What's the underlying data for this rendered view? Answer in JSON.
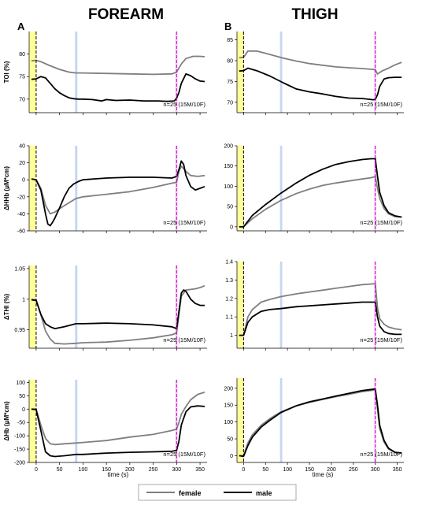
{
  "figure": {
    "col_titles": [
      "FOREARM",
      "THIGH"
    ],
    "panel_letters": [
      "A",
      "B"
    ],
    "xlabel": "time (s)",
    "annotation": "n=25 (15M/10F)",
    "legend": {
      "female": "female",
      "male": "male"
    },
    "colors": {
      "female": "#7f7f7f",
      "male": "#000000",
      "yellow_band": "#ffff99",
      "blue_band": "#c5d7f0",
      "pink_band": "#f4d2f4",
      "dash_black": "#000000",
      "dash_magenta": "#cc00cc"
    }
  },
  "chart_data": [
    {
      "type": "line",
      "id": "forearm-toi",
      "ylabel": "TOI (%)",
      "xlim": [
        -15,
        365
      ],
      "ylim": [
        67,
        85
      ],
      "yticks": [
        70,
        75,
        80
      ],
      "xticks": [
        0,
        50,
        100,
        150,
        200,
        250,
        300,
        350
      ],
      "show_xticklabels": false,
      "series": [
        {
          "name": "female",
          "x": [
            -10,
            0,
            10,
            30,
            50,
            70,
            85,
            100,
            150,
            200,
            250,
            290,
            300,
            310,
            320,
            335,
            350,
            360
          ],
          "y": [
            78.5,
            78.6,
            78.3,
            77.4,
            76.6,
            76.0,
            75.8,
            75.8,
            75.7,
            75.6,
            75.5,
            75.6,
            76.0,
            77.8,
            79.0,
            79.5,
            79.5,
            79.4
          ]
        },
        {
          "name": "male",
          "x": [
            -10,
            0,
            10,
            20,
            30,
            40,
            50,
            60,
            70,
            80,
            90,
            100,
            120,
            140,
            150,
            170,
            200,
            230,
            260,
            280,
            295,
            300,
            305,
            310,
            320,
            330,
            340,
            350,
            360
          ],
          "y": [
            74.4,
            74.5,
            75.0,
            74.7,
            73.5,
            72.3,
            71.4,
            70.8,
            70.3,
            70.1,
            70.0,
            70.0,
            69.9,
            69.6,
            69.9,
            69.7,
            69.8,
            69.6,
            69.6,
            69.5,
            69.6,
            70.2,
            71.5,
            73.5,
            75.6,
            75.2,
            74.5,
            74.0,
            73.9
          ]
        }
      ]
    },
    {
      "type": "line",
      "id": "thigh-toi",
      "ylabel": "",
      "xlim": [
        -15,
        365
      ],
      "ylim": [
        67.5,
        87
      ],
      "yticks": [
        70,
        75,
        80,
        85
      ],
      "xticks": [
        0,
        50,
        100,
        150,
        200,
        250,
        300,
        350
      ],
      "show_xticklabels": false,
      "series": [
        {
          "name": "female",
          "x": [
            -10,
            0,
            10,
            30,
            60,
            90,
            120,
            150,
            180,
            210,
            240,
            270,
            295,
            300,
            305,
            315,
            330,
            345,
            360
          ],
          "y": [
            80.7,
            80.8,
            82.3,
            82.3,
            81.5,
            80.6,
            79.9,
            79.3,
            78.9,
            78.5,
            78.3,
            78.1,
            77.9,
            77.8,
            76.8,
            77.5,
            78.2,
            79.0,
            79.6
          ]
        },
        {
          "name": "male",
          "x": [
            -10,
            0,
            10,
            30,
            60,
            90,
            120,
            150,
            180,
            210,
            240,
            270,
            295,
            300,
            305,
            310,
            320,
            330,
            345,
            360
          ],
          "y": [
            77.5,
            77.6,
            78.2,
            77.6,
            76.3,
            74.7,
            73.2,
            72.5,
            72.0,
            71.4,
            71.0,
            70.9,
            70.6,
            70.7,
            71.8,
            73.8,
            75.6,
            75.9,
            76.0,
            76.0
          ]
        }
      ]
    },
    {
      "type": "line",
      "id": "forearm-hhb",
      "ylabel": "ΔHHb (μM*cm)",
      "xlim": [
        -15,
        365
      ],
      "ylim": [
        -60,
        40
      ],
      "yticks": [
        -60,
        -40,
        -20,
        0,
        20,
        40
      ],
      "xticks": [
        0,
        50,
        100,
        150,
        200,
        250,
        300,
        350
      ],
      "show_xticklabels": false,
      "series": [
        {
          "name": "female",
          "x": [
            -10,
            0,
            10,
            20,
            30,
            40,
            50,
            70,
            85,
            100,
            150,
            200,
            250,
            290,
            300,
            305,
            310,
            320,
            330,
            345,
            360
          ],
          "y": [
            1,
            0,
            -10,
            -30,
            -40,
            -38,
            -34,
            -27,
            -22,
            -20,
            -17,
            -14,
            -9,
            -4,
            -3,
            10,
            16,
            10,
            5,
            4,
            5
          ]
        },
        {
          "name": "male",
          "x": [
            -10,
            0,
            10,
            20,
            25,
            30,
            35,
            40,
            50,
            60,
            70,
            80,
            90,
            100,
            150,
            200,
            250,
            290,
            300,
            305,
            310,
            315,
            320,
            330,
            340,
            350,
            360
          ],
          "y": [
            1,
            0,
            -12,
            -40,
            -52,
            -54,
            -50,
            -45,
            -33,
            -20,
            -10,
            -5,
            -2,
            0,
            2,
            3,
            3,
            2,
            4,
            12,
            22,
            18,
            5,
            -8,
            -12,
            -10,
            -8
          ]
        }
      ]
    },
    {
      "type": "line",
      "id": "thigh-hhb",
      "ylabel": "",
      "xlim": [
        -15,
        365
      ],
      "ylim": [
        -10,
        200
      ],
      "yticks": [
        0,
        50,
        100,
        150,
        200
      ],
      "xticks": [
        0,
        50,
        100,
        150,
        200,
        250,
        300,
        350
      ],
      "show_xticklabels": false,
      "series": [
        {
          "name": "female",
          "x": [
            -10,
            0,
            20,
            50,
            85,
            120,
            150,
            180,
            210,
            240,
            270,
            290,
            300,
            305,
            310,
            320,
            330,
            345,
            360
          ],
          "y": [
            0,
            0,
            20,
            43,
            65,
            82,
            93,
            102,
            108,
            113,
            118,
            121,
            124,
            95,
            70,
            45,
            32,
            25,
            24
          ]
        },
        {
          "name": "male",
          "x": [
            -10,
            0,
            20,
            50,
            85,
            120,
            150,
            180,
            210,
            240,
            270,
            290,
            300,
            305,
            310,
            320,
            330,
            345,
            360
          ],
          "y": [
            0,
            0,
            28,
            55,
            83,
            108,
            127,
            142,
            154,
            161,
            166,
            168,
            168,
            125,
            85,
            52,
            35,
            27,
            24
          ]
        }
      ]
    },
    {
      "type": "line",
      "id": "forearm-thi",
      "ylabel": "ΔTHI (%)",
      "xlim": [
        -15,
        365
      ],
      "ylim": [
        0.92,
        1.055
      ],
      "yticks": [
        0.95,
        1,
        1.05
      ],
      "xticks": [
        0,
        50,
        100,
        150,
        200,
        250,
        300,
        350
      ],
      "show_xticklabels": false,
      "series": [
        {
          "name": "female",
          "x": [
            -10,
            0,
            10,
            20,
            30,
            40,
            60,
            85,
            100,
            150,
            200,
            250,
            290,
            300,
            305,
            310,
            320,
            340,
            350,
            360
          ],
          "y": [
            1.0,
            0.999,
            0.975,
            0.948,
            0.935,
            0.928,
            0.927,
            0.928,
            0.929,
            0.93,
            0.933,
            0.937,
            0.942,
            0.945,
            0.975,
            1.005,
            1.015,
            1.017,
            1.019,
            1.022
          ]
        },
        {
          "name": "male",
          "x": [
            -10,
            0,
            10,
            20,
            30,
            40,
            60,
            85,
            100,
            150,
            200,
            250,
            290,
            300,
            305,
            310,
            315,
            320,
            330,
            340,
            350,
            360
          ],
          "y": [
            0.999,
            0.998,
            0.975,
            0.96,
            0.955,
            0.952,
            0.955,
            0.96,
            0.96,
            0.961,
            0.96,
            0.958,
            0.955,
            0.952,
            0.98,
            1.01,
            1.015,
            1.013,
            1.0,
            0.993,
            0.99,
            0.99
          ]
        }
      ]
    },
    {
      "type": "line",
      "id": "thigh-thi",
      "ylabel": "",
      "xlim": [
        -15,
        365
      ],
      "ylim": [
        0.93,
        1.4
      ],
      "yticks": [
        1,
        1.1,
        1.2,
        1.3,
        1.4
      ],
      "xticks": [
        0,
        50,
        100,
        150,
        200,
        250,
        300,
        350
      ],
      "show_xticklabels": false,
      "series": [
        {
          "name": "female",
          "x": [
            -10,
            0,
            10,
            20,
            40,
            60,
            85,
            120,
            150,
            180,
            210,
            240,
            270,
            300,
            305,
            310,
            320,
            330,
            345,
            360
          ],
          "y": [
            1.0,
            1.0,
            1.1,
            1.14,
            1.18,
            1.195,
            1.21,
            1.225,
            1.235,
            1.245,
            1.255,
            1.265,
            1.275,
            1.28,
            1.15,
            1.09,
            1.06,
            1.045,
            1.035,
            1.03
          ]
        },
        {
          "name": "male",
          "x": [
            -10,
            0,
            10,
            20,
            40,
            60,
            85,
            120,
            150,
            180,
            210,
            240,
            270,
            300,
            305,
            310,
            320,
            330,
            345,
            360
          ],
          "y": [
            1.0,
            1.0,
            1.07,
            1.1,
            1.13,
            1.14,
            1.145,
            1.155,
            1.16,
            1.165,
            1.17,
            1.175,
            1.18,
            1.18,
            1.1,
            1.05,
            1.02,
            1.01,
            1.005,
            1.005
          ]
        }
      ]
    },
    {
      "type": "line",
      "id": "forearm-thb",
      "ylabel": "ΔHb (μM*cm)",
      "xlim": [
        -15,
        365
      ],
      "ylim": [
        -200,
        110
      ],
      "yticks": [
        -200,
        -150,
        -100,
        -50,
        0,
        50,
        100
      ],
      "xticks": [
        0,
        50,
        100,
        150,
        200,
        250,
        300,
        350
      ],
      "xticklabels": [
        "0",
        "50",
        "100",
        "150",
        "200",
        "250",
        "300",
        "350"
      ],
      "show_xticklabels": true,
      "series": [
        {
          "name": "female",
          "x": [
            -10,
            0,
            10,
            20,
            30,
            40,
            60,
            85,
            100,
            150,
            200,
            250,
            290,
            300,
            305,
            310,
            320,
            330,
            345,
            360
          ],
          "y": [
            0,
            0,
            -60,
            -110,
            -130,
            -133,
            -130,
            -127,
            -125,
            -118,
            -105,
            -95,
            -80,
            -75,
            -50,
            -20,
            10,
            35,
            55,
            63
          ]
        },
        {
          "name": "male",
          "x": [
            -10,
            0,
            10,
            20,
            30,
            40,
            60,
            85,
            100,
            150,
            200,
            250,
            290,
            300,
            305,
            310,
            320,
            330,
            345,
            360
          ],
          "y": [
            0,
            -2,
            -80,
            -160,
            -175,
            -178,
            -175,
            -170,
            -170,
            -165,
            -162,
            -160,
            -158,
            -155,
            -120,
            -60,
            -10,
            8,
            12,
            10
          ]
        }
      ]
    },
    {
      "type": "line",
      "id": "thigh-thb",
      "ylabel": "",
      "xlim": [
        -15,
        365
      ],
      "ylim": [
        -20,
        230
      ],
      "yticks": [
        0,
        50,
        100,
        150,
        200
      ],
      "xticks": [
        0,
        50,
        100,
        150,
        200,
        250,
        300,
        350
      ],
      "xticklabels": [
        "0",
        "50",
        "100",
        "150",
        "200",
        "250",
        "300",
        "350"
      ],
      "show_xticklabels": true,
      "series": [
        {
          "name": "female",
          "x": [
            -10,
            0,
            10,
            20,
            40,
            60,
            85,
            120,
            150,
            180,
            210,
            240,
            270,
            300,
            305,
            310,
            320,
            330,
            345,
            360
          ],
          "y": [
            0,
            0,
            38,
            62,
            90,
            110,
            130,
            148,
            158,
            167,
            175,
            182,
            190,
            195,
            140,
            80,
            40,
            20,
            10,
            8
          ]
        },
        {
          "name": "male",
          "x": [
            -10,
            0,
            10,
            20,
            40,
            60,
            85,
            120,
            150,
            180,
            210,
            240,
            270,
            300,
            305,
            310,
            320,
            330,
            345,
            360
          ],
          "y": [
            0,
            -2,
            30,
            55,
            85,
            105,
            128,
            148,
            160,
            168,
            177,
            185,
            193,
            198,
            150,
            90,
            45,
            22,
            10,
            8
          ]
        }
      ]
    }
  ]
}
